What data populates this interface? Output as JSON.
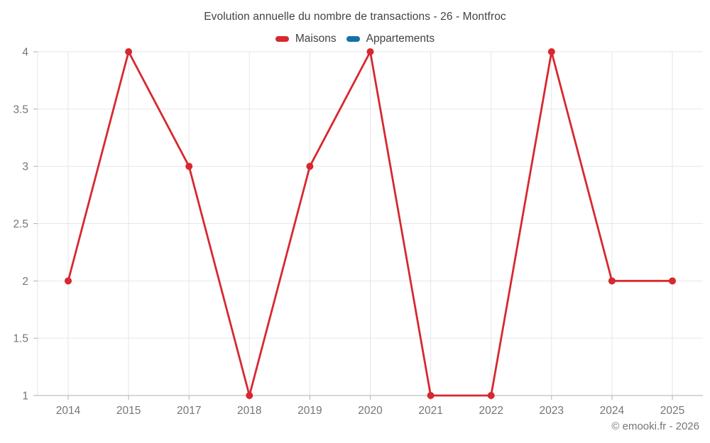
{
  "title": "Evolution annuelle du nombre de transactions - 26 - Montfroc",
  "legend": [
    {
      "label": "Maisons",
      "color": "#d7282f"
    },
    {
      "label": "Appartements",
      "color": "#1371a3"
    }
  ],
  "copyright": "© emooki.fr - 2026",
  "chart_data": {
    "type": "line",
    "title": "Evolution annuelle du nombre de transactions - 26 - Montfroc",
    "categories": [
      "2014",
      "2015",
      "2017",
      "2018",
      "2019",
      "2020",
      "2021",
      "2022",
      "2023",
      "2024",
      "2025"
    ],
    "series": [
      {
        "name": "Maisons",
        "color": "#d7282f",
        "values": [
          2,
          4,
          3,
          1,
          3,
          4,
          1,
          1,
          4,
          2,
          2
        ]
      },
      {
        "name": "Appartements",
        "color": "#1371a3",
        "values": []
      }
    ],
    "xlabel": "",
    "ylabel": "",
    "ylim": [
      1,
      4
    ],
    "y_ticks": [
      1,
      1.5,
      2,
      2.5,
      3,
      3.5,
      4
    ],
    "grid": true,
    "legend_position": "top",
    "marker_radius": 5,
    "line_width": 2.8
  },
  "colors": {
    "grid": "#e6e6e6",
    "axis": "#b0b0b0",
    "tick_label": "#757575",
    "title_text": "#424242",
    "copyright_text": "#757575"
  }
}
